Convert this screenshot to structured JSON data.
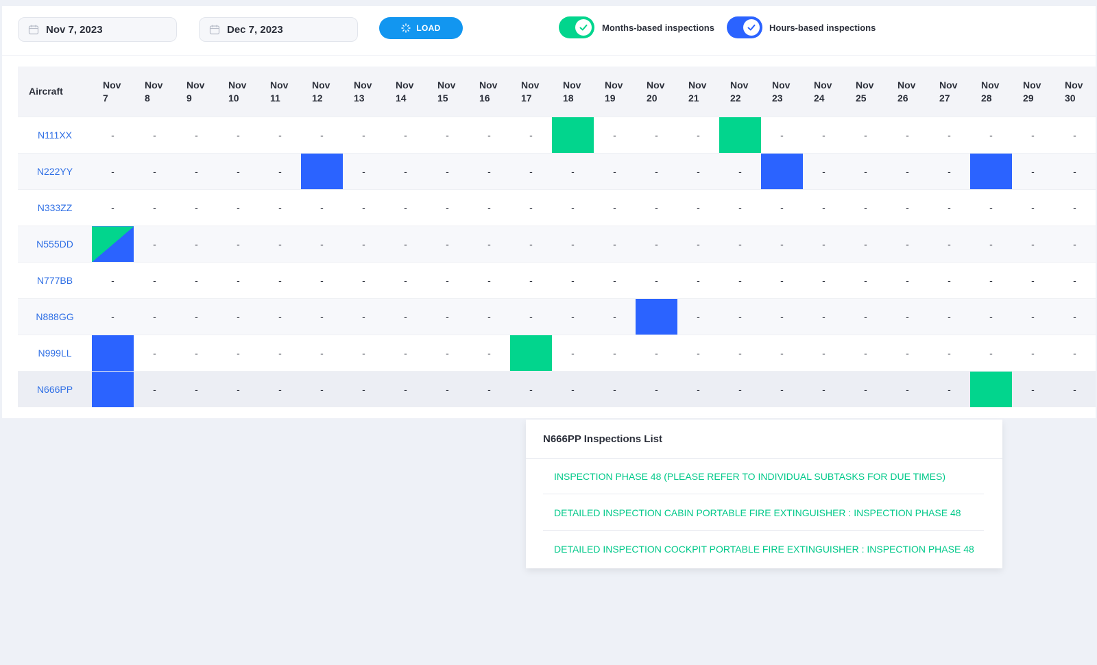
{
  "filters": {
    "start_date": "Nov 7, 2023",
    "end_date": "Dec 7, 2023",
    "load_label": "LOAD",
    "months_toggle": {
      "label": "Months-based inspections",
      "on": true
    },
    "hours_toggle": {
      "label": "Hours-based inspections",
      "on": true
    }
  },
  "colors": {
    "months": "#02d58d",
    "hours": "#2b63ff",
    "link": "#2f6fe5",
    "load": "#1296f0"
  },
  "grid": {
    "aircraft_header": "Aircraft",
    "days": [
      [
        "Nov",
        "7"
      ],
      [
        "Nov",
        "8"
      ],
      [
        "Nov",
        "9"
      ],
      [
        "Nov",
        "10"
      ],
      [
        "Nov",
        "11"
      ],
      [
        "Nov",
        "12"
      ],
      [
        "Nov",
        "13"
      ],
      [
        "Nov",
        "14"
      ],
      [
        "Nov",
        "15"
      ],
      [
        "Nov",
        "16"
      ],
      [
        "Nov",
        "17"
      ],
      [
        "Nov",
        "18"
      ],
      [
        "Nov",
        "19"
      ],
      [
        "Nov",
        "20"
      ],
      [
        "Nov",
        "21"
      ],
      [
        "Nov",
        "22"
      ],
      [
        "Nov",
        "23"
      ],
      [
        "Nov",
        "24"
      ],
      [
        "Nov",
        "25"
      ],
      [
        "Nov",
        "26"
      ],
      [
        "Nov",
        "27"
      ],
      [
        "Nov",
        "28"
      ],
      [
        "Nov",
        "29"
      ],
      [
        "Nov",
        "30"
      ]
    ],
    "empty_cell": "-",
    "rows": [
      {
        "aircraft": "N111XX",
        "inspections": {
          "11": "months",
          "15": "months"
        }
      },
      {
        "aircraft": "N222YY",
        "inspections": {
          "5": "hours",
          "16": "hours",
          "21": "hours"
        }
      },
      {
        "aircraft": "N333ZZ",
        "inspections": {}
      },
      {
        "aircraft": "N555DD",
        "inspections": {
          "0": "both"
        }
      },
      {
        "aircraft": "N777BB",
        "inspections": {}
      },
      {
        "aircraft": "N888GG",
        "inspections": {
          "13": "hours"
        }
      },
      {
        "aircraft": "N999LL",
        "inspections": {
          "0": "hours",
          "10": "months"
        }
      },
      {
        "aircraft": "N666PP",
        "inspections": {
          "0": "hours",
          "21": "months"
        },
        "selected": true
      }
    ]
  },
  "popup": {
    "title": "N666PP Inspections List",
    "items": [
      "INSPECTION PHASE 48 (PLEASE REFER TO INDIVIDUAL SUBTASKS FOR DUE TIMES)",
      "DETAILED INSPECTION CABIN PORTABLE FIRE EXTINGUISHER : INSPECTION PHASE 48",
      "DETAILED INSPECTION COCKPIT PORTABLE FIRE EXTINGUISHER : INSPECTION PHASE 48"
    ]
  }
}
